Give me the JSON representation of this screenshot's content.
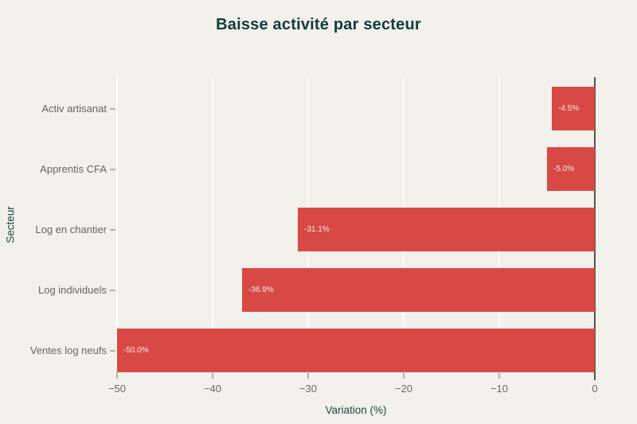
{
  "page": {
    "background_color": "#f1f0ea"
  },
  "chart_data": {
    "type": "bar",
    "orientation": "horizontal",
    "title": "Baisse activité par secteur",
    "xlabel": "Variation (%)",
    "ylabel": "Secteur",
    "categories": [
      "Activ artisanat",
      "Apprentis CFA",
      "Log en chantier",
      "Log individuels",
      "Ventes log neufs"
    ],
    "values": [
      -4.5,
      -5.0,
      -31.1,
      -36.9,
      -50.0
    ],
    "bar_labels": [
      "-4.5%",
      "-5.0%",
      "-31.1%",
      "-36.9%",
      "-50.0%"
    ],
    "xticks": [
      "−50",
      "−40",
      "−30",
      "−20",
      "−10",
      "0"
    ],
    "xtick_values": [
      -50,
      -40,
      -30,
      -20,
      -10,
      0
    ],
    "xlim": [
      -50,
      0
    ],
    "grid": "vertical-gridlines-on",
    "legend": "none",
    "bar_color": "#d84946",
    "title_color": "#123c3c",
    "axis_title_color": "#234746",
    "tick_label_color": "#6b6a64",
    "bar_label_color": "#f7eae8",
    "background_color": "#f1f0ea"
  }
}
